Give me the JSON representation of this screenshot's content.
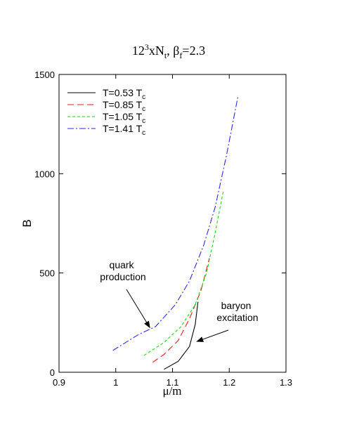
{
  "chart_data": {
    "type": "line",
    "title": {
      "main": "12",
      "sup": "3",
      "mid": "xN",
      "sub": "t",
      "sep": ", ",
      "beta": "β",
      "beta_sub": "f",
      "tail": "=2.3"
    },
    "xlabel": "μ/m",
    "ylabel": "B",
    "xlim": [
      0.9,
      1.3
    ],
    "ylim": [
      0,
      1500
    ],
    "xticks": [
      "0.9",
      "1",
      "1.1",
      "1.2",
      "1.3"
    ],
    "yticks": [
      "0",
      "500",
      "1000",
      "1500"
    ],
    "legend_position": "top-left",
    "series": [
      {
        "name": "T=0.53 T",
        "name_sub": "c",
        "color": "#000000",
        "dash": "solid",
        "x": [
          1.085,
          1.11,
          1.13,
          1.14,
          1.145
        ],
        "y": [
          15,
          55,
          130,
          240,
          355
        ]
      },
      {
        "name": "T=0.85 T",
        "name_sub": "c",
        "color": "#e8201a",
        "dash": "long-dash",
        "x": [
          1.065,
          1.085,
          1.11,
          1.13,
          1.15,
          1.165
        ],
        "y": [
          50,
          90,
          160,
          270,
          410,
          575
        ]
      },
      {
        "name": "T=1.05 T",
        "name_sub": "c",
        "color": "#19d919",
        "dash": "short-dash",
        "x": [
          1.05,
          1.085,
          1.115,
          1.14,
          1.16,
          1.175,
          1.19
        ],
        "y": [
          85,
          150,
          230,
          340,
          500,
          700,
          920
        ]
      },
      {
        "name": "T=1.41 T",
        "name_sub": "c",
        "color": "#2a2ae6",
        "dash": "dash-dot",
        "x": [
          0.995,
          1.04,
          1.07,
          1.105,
          1.13,
          1.155,
          1.175,
          1.195,
          1.215
        ],
        "y": [
          110,
          190,
          230,
          340,
          460,
          640,
          830,
          1090,
          1385
        ]
      }
    ],
    "annotations": [
      {
        "lines": [
          "quark",
          "production"
        ],
        "points_to": [
          1.06,
          225
        ]
      },
      {
        "lines": [
          "baryon",
          "excitation"
        ],
        "points_to": [
          1.143,
          155
        ]
      }
    ]
  }
}
